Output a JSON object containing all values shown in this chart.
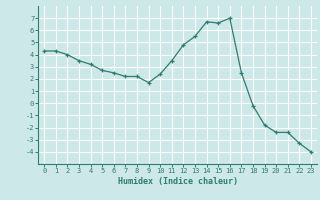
{
  "x": [
    0,
    1,
    2,
    3,
    4,
    5,
    6,
    7,
    8,
    9,
    10,
    11,
    12,
    13,
    14,
    15,
    16,
    17,
    18,
    19,
    20,
    21,
    22,
    23
  ],
  "y": [
    4.3,
    4.3,
    4.0,
    3.5,
    3.2,
    2.7,
    2.5,
    2.2,
    2.2,
    1.7,
    2.4,
    3.5,
    4.8,
    5.5,
    6.7,
    6.6,
    7.0,
    2.5,
    -0.2,
    -1.8,
    -2.4,
    -2.4,
    -3.3,
    -4.0
  ],
  "line_color": "#2e7d6e",
  "marker": "+",
  "marker_size": 3,
  "linewidth": 0.9,
  "background_color": "#cce8e8",
  "grid_color": "#ffffff",
  "xlabel": "Humidex (Indice chaleur)",
  "xlabel_fontsize": 6,
  "tick_fontsize": 5,
  "ylim": [
    -5,
    8
  ],
  "xlim": [
    -0.5,
    23.5
  ],
  "yticks": [
    -4,
    -3,
    -2,
    -1,
    0,
    1,
    2,
    3,
    4,
    5,
    6,
    7
  ],
  "xticks": [
    0,
    1,
    2,
    3,
    4,
    5,
    6,
    7,
    8,
    9,
    10,
    11,
    12,
    13,
    14,
    15,
    16,
    17,
    18,
    19,
    20,
    21,
    22,
    23
  ]
}
